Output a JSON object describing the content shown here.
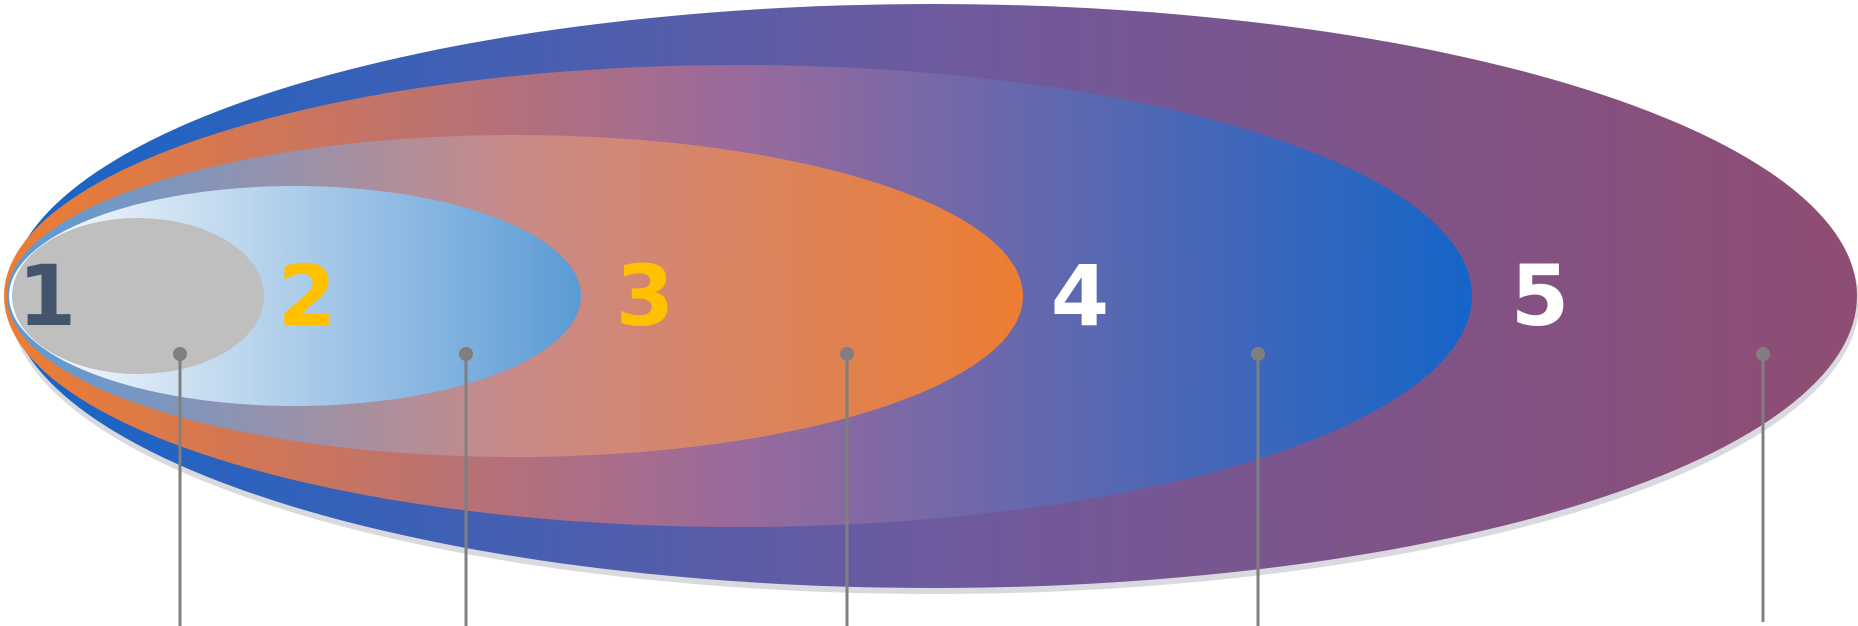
{
  "diagram": {
    "type": "nested-ellipses",
    "levels": [
      {
        "label": "1",
        "label_color": "#44546A",
        "fill_from": "#BFBFBF",
        "fill_to": "#BFBFBF"
      },
      {
        "label": "2",
        "label_color": "#FFC000",
        "fill_from": "#FFFFFF",
        "fill_to": "#5B9BD5"
      },
      {
        "label": "3",
        "label_color": "#FFC000",
        "fill_from": "#5B9BD5",
        "fill_to": "#ED7D31"
      },
      {
        "label": "4",
        "label_color": "#FFFFFF",
        "fill_from": "#ED7D31",
        "fill_to": "#1565C8"
      },
      {
        "label": "5",
        "label_color": "#FFFFFF",
        "fill_from": "#1565C8",
        "fill_to": "#8F4D72"
      }
    ],
    "connector_color": "#7F7F7F",
    "shadow_color": "#D9D9E0"
  }
}
